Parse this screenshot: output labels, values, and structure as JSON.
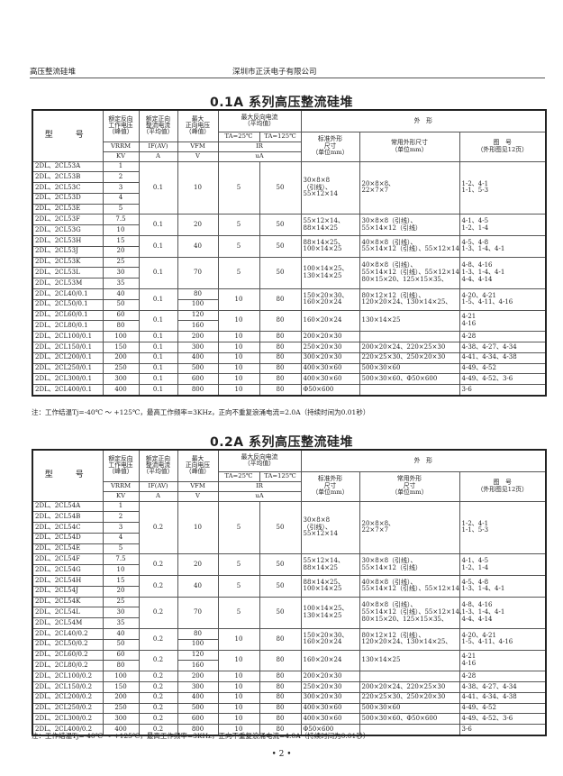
{
  "page_header": {
    "left": "高压整流硅堆",
    "center": "深圳市正沃电子有限公司"
  },
  "page_number": "• 2 •",
  "header_labels": {
    "model": "型　号",
    "rated_reverse": [
      "额定反向",
      "工作电压",
      "（峰值）"
    ],
    "rated_forward": [
      "额定正向",
      "整流电流",
      "（平均值）"
    ],
    "max_forward": [
      "最大",
      "正向电压",
      "（峰值）"
    ],
    "max_reverse": [
      "最大反向电流",
      "（平均值）"
    ],
    "ta25": "TA=25℃",
    "ta125": "TA=125℃",
    "outline": "外　形",
    "std_outline": [
      "标准外形",
      "尺寸",
      "（单位mm）"
    ],
    "fig_no": [
      "图　号",
      "（外形图见12页）"
    ],
    "sym_vrrm": "VRRM",
    "sym_if": "IF(AV)",
    "sym_vfm": "VFM",
    "sym_ir": "IR",
    "unit_kv": "KV",
    "unit_a": "A",
    "unit_v": "V",
    "unit_ua": "uA"
  },
  "tables": [
    {
      "title": "0.1A 系列高压整流硅堆",
      "common_outline_header": [
        "常用外形尺寸",
        "（单位mm）"
      ],
      "note": "注：工作结温Tj=-40℃ ～ +125℃，最高工作频率=3KHz，正向不重复浪涌电流=2.0A（持续时间为0.01秒）",
      "groups": [
        {
          "rows": [
            [
              "2DL、2CL53A",
              "1"
            ],
            [
              "2DL、2CL53B",
              "2"
            ],
            [
              "2DL、2CL53C",
              "3"
            ],
            [
              "2DL、2CL53D",
              "4"
            ],
            [
              "2DL、2CL53E",
              "5"
            ]
          ],
          "a": "0.1",
          "v": "10",
          "ir25": "5",
          "ir125": "50",
          "std": [
            "30×8×8",
            "（引线）、",
            "55×12×14"
          ],
          "common": [
            "20×8×8、",
            "22×7×7"
          ],
          "fig": [
            "1-2、4-1",
            "1-1、5-3"
          ]
        },
        {
          "rows": [
            [
              "2DL、2CL53F",
              "7.5"
            ],
            [
              "2DL、2CL53G",
              "10"
            ]
          ],
          "a": "0.1",
          "v": "20",
          "ir25": "5",
          "ir125": "50",
          "std": [
            "55×12×14、",
            "88×14×25"
          ],
          "common": [
            "30×8×8（引线）、",
            "55×14×12（引线）"
          ],
          "fig": [
            "4-1、4-5",
            "1-2、1-4"
          ]
        },
        {
          "rows": [
            [
              "2DL、2CL53H",
              "15"
            ],
            [
              "2DL、2CL53J",
              "20"
            ]
          ],
          "a": "0.1",
          "v": "40",
          "ir25": "5",
          "ir125": "50",
          "std": [
            "88×14×25、",
            "100×14×25"
          ],
          "common": [
            "40×8×8（引线）、",
            "55×14×12（引线）、55×12×14"
          ],
          "fig": [
            "4-5、4-8",
            "1-3、1-4、4-1"
          ]
        },
        {
          "rows": [
            [
              "2DL、2CL53K",
              "25"
            ],
            [
              "2DL、2CL53L",
              "30"
            ],
            [
              "2DL、2CL53M",
              "35"
            ]
          ],
          "a": "0.1",
          "v": "70",
          "ir25": "5",
          "ir125": "50",
          "std": [
            "100×14×25、",
            "130×14×25"
          ],
          "common": [
            "40×8×8（引线）、",
            "55×14×12（引线）、55×12×14",
            "80×15×20、125×15×35、"
          ],
          "fig": [
            "4-8、4-16",
            "1-3、1-4、4-1",
            "4-4、4-14"
          ]
        },
        {
          "rows": [
            [
              "2DL、2CL40/0.1",
              "40"
            ],
            [
              "2DL、2CL50/0.1",
              "50"
            ]
          ],
          "a": "0.1",
          "v": [
            "80",
            "100"
          ],
          "ir25": "10",
          "ir125": "80",
          "std": [
            "150×20×30、",
            "160×20×24"
          ],
          "common": [
            "80×12×12（引线）、",
            "120×20×24、130×14×25、"
          ],
          "fig": [
            "4-20、4-21",
            "1-5、4-11、4-16"
          ]
        },
        {
          "rows": [
            [
              "2DL、2CL60/0.1",
              "60"
            ],
            [
              "2DL、2CL80/0.1",
              "80"
            ]
          ],
          "a": "0.1",
          "v": [
            "120",
            "160"
          ],
          "ir25": "10",
          "ir125": "80",
          "std": [
            "160×20×24"
          ],
          "common": [
            "130×14×25"
          ],
          "fig": [
            "4-21",
            "4-16"
          ]
        },
        {
          "rows": [
            [
              "2DL、2CL100/0.1",
              "100"
            ]
          ],
          "a": "0.1",
          "v": "200",
          "ir25": "10",
          "ir125": "80",
          "std": [
            "200×20×30"
          ],
          "common": [
            ""
          ],
          "fig": [
            "4-28"
          ]
        },
        {
          "rows": [
            [
              "2DL、2CL150/0.1",
              "150"
            ]
          ],
          "a": "0.1",
          "v": "300",
          "ir25": "10",
          "ir125": "80",
          "std": [
            "250×20×30"
          ],
          "common": [
            "200×20×24、220×25×30"
          ],
          "fig": [
            "4-38、4-27、4-34"
          ]
        },
        {
          "rows": [
            [
              "2DL、2CL200/0.1",
              "200"
            ]
          ],
          "a": "0.1",
          "v": "400",
          "ir25": "10",
          "ir125": "80",
          "std": [
            "300×20×30"
          ],
          "common": [
            "220×25×30、250×20×30"
          ],
          "fig": [
            "4-41、4-34、4-38"
          ]
        },
        {
          "rows": [
            [
              "2DL、2CL250/0.1",
              "250"
            ]
          ],
          "a": "0.1",
          "v": "500",
          "ir25": "10",
          "ir125": "80",
          "std": [
            "400×30×60"
          ],
          "common": [
            "500×30×60"
          ],
          "fig": [
            "4-49、4-52"
          ]
        },
        {
          "rows": [
            [
              "2DL、2CL300/0.1",
              "300"
            ]
          ],
          "a": "0.1",
          "v": "600",
          "ir25": "10",
          "ir125": "80",
          "std": [
            "400×30×60"
          ],
          "common": [
            "500×30×60、Φ50×600"
          ],
          "fig": [
            "4-49、4-52、3-6"
          ]
        },
        {
          "rows": [
            [
              "2DL、2CL400/0.1",
              "400"
            ]
          ],
          "a": "0.1",
          "v": "800",
          "ir25": "10",
          "ir125": "80",
          "std": [
            "Φ50×600"
          ],
          "common": [
            ""
          ],
          "fig": [
            "3-6"
          ]
        }
      ]
    },
    {
      "title": "0.2A 系列高压整流硅堆",
      "common_outline_header": [
        "常用外形",
        "尺寸",
        "（单位mm）"
      ],
      "note": "注：工作结温Tj=-40℃ ～ +125℃，最高工作频率=3KHz，正向不重复浪涌电流=4.0A（持续时间为0.01秒）",
      "groups": [
        {
          "rows": [
            [
              "2DL、2CL54A",
              "1"
            ],
            [
              "2DL、2CL54B",
              "2"
            ],
            [
              "2DL、2CL54C",
              "3"
            ],
            [
              "2DL、2CL54D",
              "4"
            ],
            [
              "2DL、2CL54E",
              "5"
            ]
          ],
          "a": "0.2",
          "v": "10",
          "ir25": "5",
          "ir125": "50",
          "std": [
            "30×8×8",
            "（引线）、",
            "55×12×14"
          ],
          "common": [
            "20×8×8、",
            "22×7×7"
          ],
          "fig": [
            "1-2、4-1",
            "1-1、5-3"
          ]
        },
        {
          "rows": [
            [
              "2DL、2CL54F",
              "7.5"
            ],
            [
              "2DL、2CL54G",
              "10"
            ]
          ],
          "a": "0.2",
          "v": "20",
          "ir25": "5",
          "ir125": "50",
          "std": [
            "55×12×14、",
            "88×14×25"
          ],
          "common": [
            "30×8×8（引线）、",
            "55×14×12（引线）"
          ],
          "fig": [
            "4-1、4-5",
            "1-2、1-4"
          ]
        },
        {
          "rows": [
            [
              "2DL、2CL54H",
              "15"
            ],
            [
              "2DL、2CL54J",
              "20"
            ]
          ],
          "a": "0.2",
          "v": "40",
          "ir25": "5",
          "ir125": "50",
          "std": [
            "88×14×25、",
            "100×14×25"
          ],
          "common": [
            "40×8×8（引线）、",
            "55×14×12（引线）、55×12×14"
          ],
          "fig": [
            "4-5、4-8",
            "1-3、1-4、4-1"
          ]
        },
        {
          "rows": [
            [
              "2DL、2CL54K",
              "25"
            ],
            [
              "2DL、2CL54L",
              "30"
            ],
            [
              "2DL、2CL54M",
              "35"
            ]
          ],
          "a": "0.2",
          "v": "70",
          "ir25": "5",
          "ir125": "50",
          "std": [
            "100×14×25、",
            "130×14×25"
          ],
          "common": [
            "40×8×8（引线）、",
            "55×14×12（引线）、55×12×14、",
            "80×15×20、125×15×35、"
          ],
          "fig": [
            "4-8、4-16",
            "1-3、1-4、4-1",
            "4-4、4-14"
          ]
        },
        {
          "rows": [
            [
              "2DL、2CL40/0.2",
              "40"
            ],
            [
              "2DL、2CL50/0.2",
              "50"
            ]
          ],
          "a": "0.2",
          "v": [
            "80",
            "100"
          ],
          "ir25": "10",
          "ir125": "80",
          "std": [
            "150×20×30、",
            "160×20×24"
          ],
          "common": [
            "80×12×12（引线）、",
            "120×20×24、130×14×25、"
          ],
          "fig": [
            "4-20、4-21",
            "1-5、4-11、4-16"
          ]
        },
        {
          "rows": [
            [
              "2DL、2CL60/0.2",
              "60"
            ],
            [
              "2DL、2CL80/0.2",
              "80"
            ]
          ],
          "a": "0.2",
          "v": [
            "120",
            "160"
          ],
          "ir25": "10",
          "ir125": "80",
          "std": [
            "160×20×24"
          ],
          "common": [
            "130×14×25"
          ],
          "fig": [
            "4-21",
            "4-16"
          ]
        },
        {
          "rows": [
            [
              "2DL、2CL100/0.2",
              "100"
            ]
          ],
          "a": "0.2",
          "v": "200",
          "ir25": "10",
          "ir125": "80",
          "std": [
            "200×20×30"
          ],
          "common": [
            ""
          ],
          "fig": [
            "4-28"
          ]
        },
        {
          "rows": [
            [
              "2DL、2CL150/0.2",
              "150"
            ]
          ],
          "a": "0.2",
          "v": "300",
          "ir25": "10",
          "ir125": "80",
          "std": [
            "250×20×30"
          ],
          "common": [
            "200×20×24、220×25×30"
          ],
          "fig": [
            "4-38、4-27、4-34"
          ]
        },
        {
          "rows": [
            [
              "2DL、2CL200/0.2",
              "200"
            ]
          ],
          "a": "0.2",
          "v": "400",
          "ir25": "10",
          "ir125": "80",
          "std": [
            "300×20×30"
          ],
          "common": [
            "220×25×30、250×20×30"
          ],
          "fig": [
            "4-41、4-34、4-38"
          ]
        },
        {
          "rows": [
            [
              "2DL、2CL250/0.2",
              "250"
            ]
          ],
          "a": "0.2",
          "v": "500",
          "ir25": "10",
          "ir125": "80",
          "std": [
            "400×30×60"
          ],
          "common": [
            "500×30×60"
          ],
          "fig": [
            "4-49、4-52"
          ]
        },
        {
          "rows": [
            [
              "2DL、2CL300/0.2",
              "300"
            ]
          ],
          "a": "0.2",
          "v": "600",
          "ir25": "10",
          "ir125": "80",
          "std": [
            "400×30×60"
          ],
          "common": [
            "500×30×60、Φ50×600"
          ],
          "fig": [
            "4-49、4-52、3-6"
          ]
        },
        {
          "rows": [
            [
              "2DL、2CL400/0.2",
              "400"
            ]
          ],
          "a": "0.2",
          "v": "800",
          "ir25": "10",
          "ir125": "80",
          "std": [
            "Φ50×600"
          ],
          "common": [
            ""
          ],
          "fig": [
            "3-6"
          ]
        }
      ]
    }
  ]
}
